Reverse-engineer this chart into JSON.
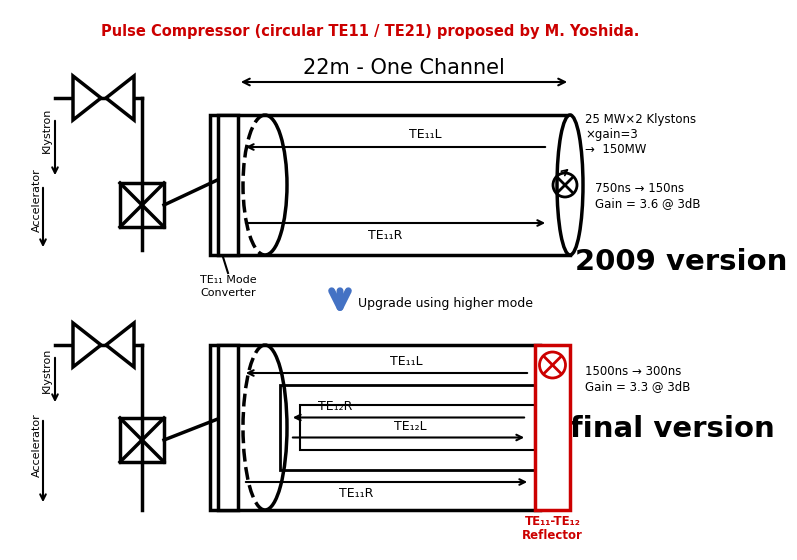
{
  "title": "Pulse Compressor (circular TE11 / TE21) proposed by M. Yoshida.",
  "title_color": "#cc0000",
  "bg_color": "#ffffff",
  "channel_label": "22m - One Channel",
  "klystron_text1": "25 MW×2 Klystons",
  "klystron_text2": "×gain=3",
  "klystron_text3": "→  150MW",
  "timing_text1": "750ns → 150ns",
  "timing_text2": "Gain = 3.6 @ 3dB",
  "version_text": "2009 version",
  "mode_converter_line1": "TE₁₁ Mode",
  "mode_converter_line2": "Converter",
  "upgrade_text": "Upgrade using higher mode",
  "timing2_text1": "1500ns → 300ns",
  "timing2_text2": "Gain = 3.3 @ 3dB",
  "final_text": "final version",
  "reflector_line1": "TE₁₁-TE₁₂",
  "reflector_line2": "Reflector",
  "te11l_label": "TE₁₁L",
  "te11r_label": "TE₁₁R",
  "te11l2_label": "TE₁₁L",
  "te11r2_label": "TE₁₁R",
  "te12r_label": "TE₁₂R",
  "te12l_label": "TE₁₂L",
  "klystron_label": "Klystron",
  "accelerator_label": "Accelerator"
}
